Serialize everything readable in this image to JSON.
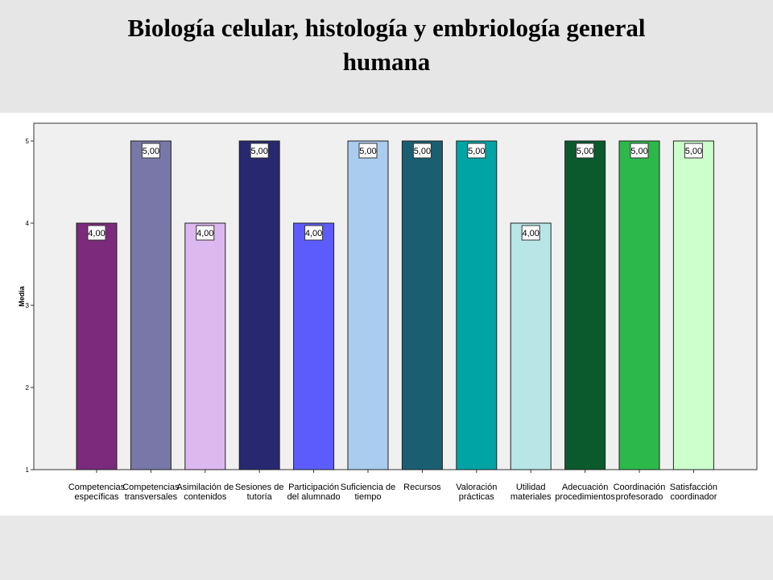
{
  "title_line1": "Biología celular, histología y embriología general",
  "title_line2": "humana",
  "chart_data": {
    "type": "bar",
    "title": "Biología celular, histología y embriología general humana",
    "xlabel": "",
    "ylabel": "Media",
    "ylim": [
      1,
      5
    ],
    "yticks": [
      "1",
      "2",
      "3",
      "4",
      "5"
    ],
    "grid": false,
    "categories": [
      [
        "Competencias",
        "específicas"
      ],
      [
        "Competencias",
        "transversales"
      ],
      [
        "Asimilación de",
        "contenidos"
      ],
      [
        "Sesiones de",
        "tutoría"
      ],
      [
        "Participación",
        "del alumnado"
      ],
      [
        "Suficiencia de",
        "tiempo"
      ],
      [
        "Recursos"
      ],
      [
        "Valoración",
        "prácticas"
      ],
      [
        "Utilidad",
        "materiales"
      ],
      [
        "Adecuación",
        "procedimientos"
      ],
      [
        "Coordinación",
        "profesorado"
      ],
      [
        "Satisfacción",
        "coordinador"
      ]
    ],
    "values": [
      4,
      5,
      4,
      5,
      4,
      5,
      5,
      5,
      4,
      5,
      5,
      5
    ],
    "data_labels": [
      "4,00",
      "5,00",
      "4,00",
      "5,00",
      "4,00",
      "5,00",
      "5,00",
      "5,00",
      "4,00",
      "5,00",
      "5,00",
      "5,00"
    ],
    "colors": [
      "#7b2a7c",
      "#7878a8",
      "#dcb8f0",
      "#282870",
      "#5c5cfc",
      "#aaccee",
      "#1a5e72",
      "#00a4a4",
      "#b8e6e6",
      "#0a5a2e",
      "#2db84a",
      "#ccffcc"
    ]
  }
}
